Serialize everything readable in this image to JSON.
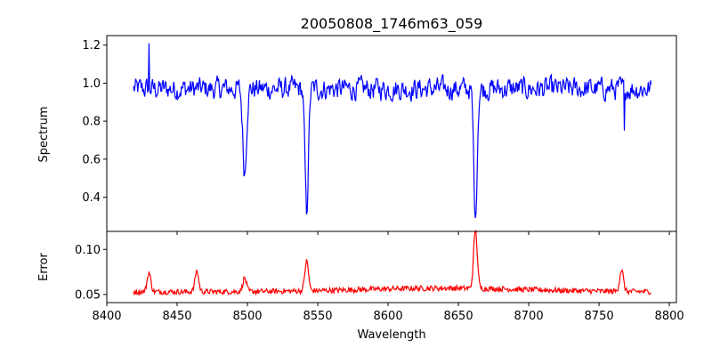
{
  "chart_data": [
    {
      "type": "line",
      "title": "20050808_1746m63_059",
      "xlabel": "",
      "ylabel": "Spectrum",
      "xlim": [
        8400,
        8805
      ],
      "ylim": [
        0.22,
        1.25
      ],
      "xticks": [
        8400,
        8450,
        8500,
        8550,
        8600,
        8650,
        8700,
        8750,
        8800
      ],
      "xtick_labels_shown": false,
      "yticks": [
        0.4,
        0.6,
        0.8,
        1.0,
        1.2
      ],
      "ytick_labels": [
        "0.4",
        "0.6",
        "0.8",
        "1.0",
        "1.2"
      ],
      "grid": false,
      "series": [
        {
          "color": "#0000ff",
          "x_range": [
            8419,
            8787
          ],
          "continuum": 0.97,
          "noise_amplitude": 0.09,
          "absorption_lines": [
            {
              "center": 8498.0,
              "depth": 0.44,
              "width": 1.3
            },
            {
              "center": 8542.1,
              "depth": 0.64,
              "width": 1.2
            },
            {
              "center": 8662.1,
              "depth": 0.67,
              "width": 1.2
            }
          ],
          "notable_points": [
            {
              "x": 8430.0,
              "y": 1.21
            },
            {
              "x": 8498.0,
              "y": 0.52
            },
            {
              "x": 8542.1,
              "y": 0.31
            },
            {
              "x": 8662.1,
              "y": 0.29
            },
            {
              "x": 8768.0,
              "y": 0.75
            }
          ]
        }
      ]
    },
    {
      "type": "line",
      "title": "",
      "xlabel": "Wavelength",
      "ylabel": "Error",
      "xlim": [
        8400,
        8805
      ],
      "ylim": [
        0.041,
        0.12
      ],
      "xticks": [
        8400,
        8450,
        8500,
        8550,
        8600,
        8650,
        8700,
        8750,
        8800
      ],
      "xtick_labels": [
        "8400",
        "8450",
        "8500",
        "8550",
        "8600",
        "8650",
        "8700",
        "8750",
        "8800"
      ],
      "yticks": [
        0.05,
        0.1
      ],
      "ytick_labels": [
        "0.05",
        "0.10"
      ],
      "grid": false,
      "series": [
        {
          "color": "#ff0000",
          "x_range": [
            8419,
            8787
          ],
          "baseline": 0.053,
          "noise_amplitude": 0.003,
          "peaks": [
            {
              "center": 8430.0,
              "height": 0.074
            },
            {
              "center": 8464.0,
              "height": 0.076
            },
            {
              "center": 8498.0,
              "height": 0.068
            },
            {
              "center": 8542.1,
              "height": 0.086
            },
            {
              "center": 8662.1,
              "height": 0.118
            },
            {
              "center": 8766.0,
              "height": 0.077
            }
          ]
        }
      ]
    }
  ]
}
